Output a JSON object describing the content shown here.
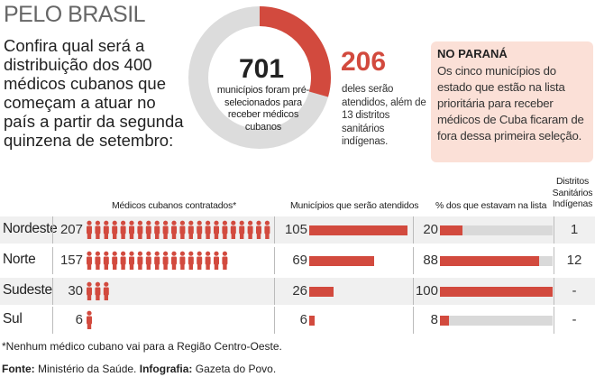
{
  "title": "PELO BRASIL",
  "intro": "Confira qual será a distribuição dos 400 médicos cubanos que começam a atuar no país a partir da segunda quinzena de setembro:",
  "donut": {
    "total": "701",
    "total_text": "municípios foram pré-selecionados para receber médicos cubanos",
    "selected": "206",
    "selected_text": "deles serão atendidos, além de 13 distritos sanitários indígenas."
  },
  "parana": {
    "title": "NO PARANÁ",
    "text": "Os cinco municípios do estado que estão na lista prioritária para receber médicos de Cuba ficaram de fora dessa primeira seleção."
  },
  "headers": {
    "medicos": "Médicos cubanos contratados*",
    "municipios": "Municípios que serão atendidos",
    "percent": "% dos que estavam na lista",
    "distritos": "Distritos Sanitários Indígenas"
  },
  "colors": {
    "accent": "#d24a3e",
    "track": "#d9d9d9",
    "donut_gray": "#dcdcdc"
  },
  "chart_data": {
    "type": "bar",
    "title": "PELO BRASIL",
    "categories": [
      "Nordeste",
      "Norte",
      "Sudeste",
      "Sul"
    ],
    "series": [
      {
        "name": "Médicos cubanos contratados*",
        "values": [
          207,
          157,
          30,
          6
        ]
      },
      {
        "name": "Municípios que serão atendidos",
        "values": [
          105,
          69,
          26,
          6
        ]
      },
      {
        "name": "% dos que estavam na lista",
        "values": [
          20,
          88,
          100,
          8
        ]
      },
      {
        "name": "Distritos Sanitários Indígenas",
        "values": [
          "1",
          "12",
          "-",
          "-"
        ]
      }
    ],
    "donut": {
      "total": 701,
      "selected": 206
    }
  },
  "footnote": "*Nenhum médico cubano vai para a Região Centro-Oeste.",
  "source": {
    "fonte_label": "Fonte:",
    "fonte": "Ministério da Saúde.",
    "info_label": "Infografia:",
    "info": "Gazeta do Povo."
  }
}
